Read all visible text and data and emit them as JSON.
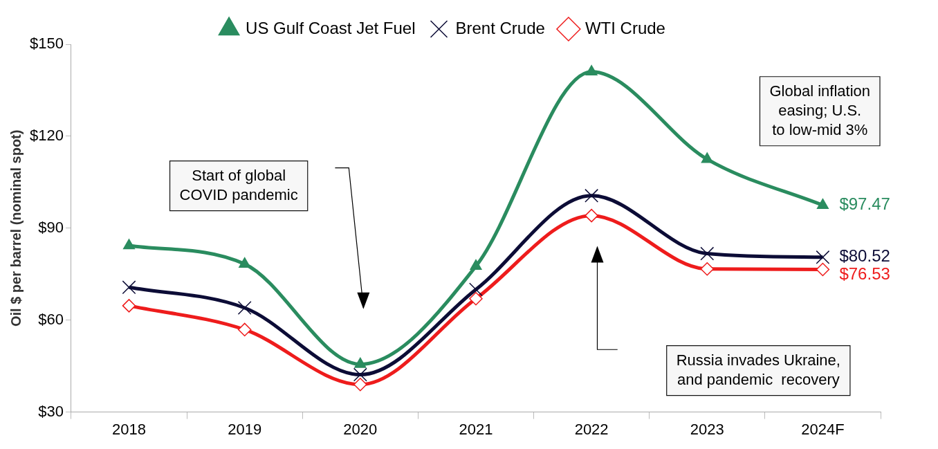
{
  "chart_data": {
    "type": "line",
    "ylabel": "Oil $ per barrel (nominal spot)",
    "categories": [
      "2018",
      "2019",
      "2020",
      "2021",
      "2022",
      "2023",
      "2024F"
    ],
    "series": [
      {
        "name": "US Gulf Coast Jet Fuel",
        "color": "#2a8c5f",
        "marker": "triangle",
        "values": [
          84.3,
          78.3,
          45.6,
          77.6,
          141.0,
          112.5,
          97.47
        ],
        "value_labels": [
          null,
          null,
          null,
          null,
          null,
          null,
          "$97.47"
        ]
      },
      {
        "name": "Brent Crude",
        "color": "#0c0c36",
        "marker": "cross",
        "values": [
          70.7,
          64.0,
          42.2,
          70.0,
          100.6,
          81.7,
          80.52
        ],
        "value_labels": [
          null,
          null,
          null,
          null,
          null,
          null,
          "$80.52"
        ]
      },
      {
        "name": "WTI Crude",
        "color": "#ee1c1c",
        "marker": "diamond",
        "values": [
          64.7,
          56.9,
          39.0,
          67.0,
          94.1,
          76.7,
          76.53
        ],
        "value_labels": [
          null,
          null,
          null,
          null,
          null,
          null,
          "$76.53"
        ]
      }
    ],
    "ylim": [
      30,
      150
    ],
    "yticks": [
      {
        "value": 30,
        "label": "$30"
      },
      {
        "value": 60,
        "label": "$60"
      },
      {
        "value": 90,
        "label": "$90"
      },
      {
        "value": 120,
        "label": "$120"
      },
      {
        "value": 150,
        "label": "$150"
      }
    ],
    "grid": false,
    "legend": "top",
    "annotations": [
      "Start of global\nCOVID pandemic",
      "Russia invades Ukraine,\nand pandemic  recovery",
      "Global inflation\neasing; U.S.\nto low-mid 3%"
    ]
  }
}
